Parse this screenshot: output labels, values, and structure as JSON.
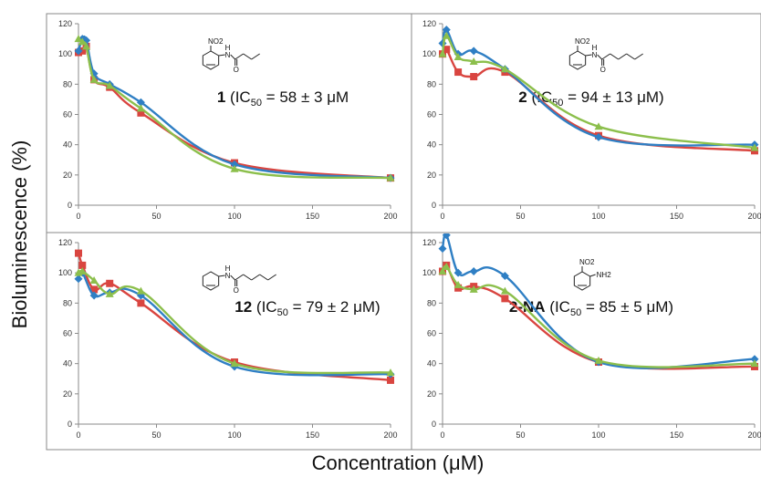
{
  "figure": {
    "y_axis_label": "Bioluminescence (%)",
    "x_axis_label": "Concentration (μM)"
  },
  "series_colors": [
    "#2f7fc4",
    "#d94540",
    "#8cbf4c"
  ],
  "chart_data": [
    {
      "type": "line",
      "compound_id": "1",
      "ic50_text": "58 ± 3 μM",
      "xlim": [
        0,
        200
      ],
      "ylim": [
        0,
        120
      ],
      "xticks": [
        0,
        50,
        100,
        150,
        200
      ],
      "yticks": [
        0,
        20,
        40,
        60,
        80,
        100,
        120
      ],
      "structure_labels": [
        "NO2",
        "H",
        "N",
        "O"
      ],
      "series": [
        {
          "values": [
            [
              0,
              102
            ],
            [
              2.5,
              110
            ],
            [
              5,
              109
            ],
            [
              10,
              87
            ],
            [
              20,
              80
            ],
            [
              40,
              68
            ],
            [
              100,
              27
            ],
            [
              200,
              18
            ]
          ]
        },
        {
          "values": [
            [
              0,
              101
            ],
            [
              2.5,
              102
            ],
            [
              5,
              105
            ],
            [
              10,
              83
            ],
            [
              20,
              78
            ],
            [
              40,
              61
            ],
            [
              100,
              28
            ],
            [
              200,
              18
            ]
          ]
        },
        {
          "values": [
            [
              0,
              110
            ],
            [
              2.5,
              108
            ],
            [
              5,
              105
            ],
            [
              10,
              83
            ],
            [
              20,
              79
            ],
            [
              40,
              64
            ],
            [
              100,
              24
            ],
            [
              200,
              18
            ]
          ]
        }
      ]
    },
    {
      "type": "line",
      "compound_id": "2",
      "ic50_text": "94 ± 13 μM)",
      "xlim": [
        0,
        200
      ],
      "ylim": [
        0,
        120
      ],
      "xticks": [
        0,
        50,
        100,
        150,
        200
      ],
      "yticks": [
        0,
        20,
        40,
        60,
        80,
        100,
        120
      ],
      "structure_labels": [
        "NO2",
        "H",
        "N",
        "O"
      ],
      "series": [
        {
          "values": [
            [
              0,
              107
            ],
            [
              2.5,
              116
            ],
            [
              10,
              100
            ],
            [
              20,
              102
            ],
            [
              40,
              90
            ],
            [
              100,
              45
            ],
            [
              200,
              40
            ]
          ]
        },
        {
          "values": [
            [
              0,
              100
            ],
            [
              2.5,
              103
            ],
            [
              10,
              88
            ],
            [
              20,
              85
            ],
            [
              40,
              88
            ],
            [
              100,
              46
            ],
            [
              200,
              36
            ]
          ]
        },
        {
          "values": [
            [
              0,
              100
            ],
            [
              2.5,
              112
            ],
            [
              10,
              98
            ],
            [
              20,
              95
            ],
            [
              40,
              90
            ],
            [
              100,
              52
            ],
            [
              200,
              38
            ]
          ]
        }
      ]
    },
    {
      "type": "line",
      "compound_id": "12",
      "ic50_text": "79 ± 2 μM)",
      "xlim": [
        0,
        200
      ],
      "ylim": [
        0,
        120
      ],
      "xticks": [
        0,
        50,
        100,
        150,
        200
      ],
      "yticks": [
        0,
        20,
        40,
        60,
        80,
        100,
        120
      ],
      "structure_labels": [
        "H",
        "N",
        "O"
      ],
      "series": [
        {
          "values": [
            [
              0,
              96
            ],
            [
              2.5,
              100
            ],
            [
              10,
              85
            ],
            [
              20,
              87
            ],
            [
              40,
              85
            ],
            [
              100,
              38
            ],
            [
              200,
              33
            ]
          ]
        },
        {
          "values": [
            [
              0,
              113
            ],
            [
              2.5,
              105
            ],
            [
              10,
              89
            ],
            [
              20,
              93
            ],
            [
              40,
              80
            ],
            [
              100,
              41
            ],
            [
              200,
              29
            ]
          ]
        },
        {
          "values": [
            [
              0,
              100
            ],
            [
              2.5,
              101
            ],
            [
              10,
              95
            ],
            [
              20,
              86
            ],
            [
              40,
              88
            ],
            [
              100,
              40
            ],
            [
              200,
              34
            ]
          ]
        }
      ]
    },
    {
      "type": "line",
      "compound_id": "2-NA",
      "ic50_text": "85 ± 5 μM)",
      "xlim": [
        0,
        200
      ],
      "ylim": [
        0,
        120
      ],
      "xticks": [
        0,
        50,
        100,
        150,
        200
      ],
      "yticks": [
        0,
        20,
        40,
        60,
        80,
        100,
        120
      ],
      "structure_labels": [
        "NO2",
        "NH2"
      ],
      "series": [
        {
          "values": [
            [
              0,
              116
            ],
            [
              2.5,
              125
            ],
            [
              10,
              100
            ],
            [
              20,
              101
            ],
            [
              40,
              98
            ],
            [
              100,
              41
            ],
            [
              200,
              43
            ]
          ]
        },
        {
          "values": [
            [
              0,
              101
            ],
            [
              2.5,
              105
            ],
            [
              10,
              90
            ],
            [
              20,
              91
            ],
            [
              40,
              83
            ],
            [
              100,
              41
            ],
            [
              200,
              38
            ]
          ]
        },
        {
          "values": [
            [
              0,
              101
            ],
            [
              2.5,
              104
            ],
            [
              10,
              92
            ],
            [
              20,
              89
            ],
            [
              40,
              88
            ],
            [
              100,
              42
            ],
            [
              200,
              40
            ]
          ]
        }
      ]
    }
  ]
}
